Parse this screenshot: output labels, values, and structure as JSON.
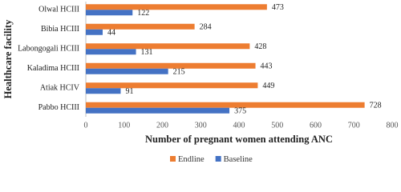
{
  "chart_data": {
    "type": "barh",
    "x_label": "Number of pregnant women attending ANC",
    "y_label": "Healthcare facility",
    "categories": [
      "Olwal HCIII",
      "Bibia HCIII",
      "Labongogali HCIII",
      "Kaladima HCIII",
      "Atiak HCIV",
      "Pabbo HCIII"
    ],
    "series": [
      {
        "name": "Endline",
        "color": "#ED7D31",
        "values": [
          473,
          284,
          428,
          443,
          449,
          728
        ]
      },
      {
        "name": "Baseline",
        "color": "#4472C4",
        "values": [
          122,
          44,
          131,
          215,
          91,
          375
        ]
      }
    ],
    "xlim": [
      0,
      800
    ],
    "xticks": [
      0,
      100,
      200,
      300,
      400,
      500,
      600,
      700,
      800
    ],
    "grid": false,
    "legend": "bottom"
  }
}
